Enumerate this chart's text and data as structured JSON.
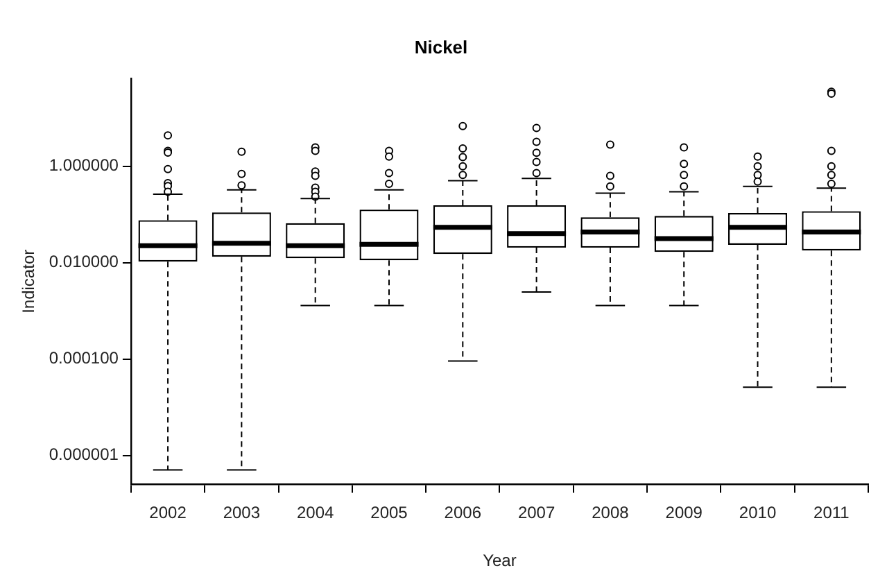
{
  "chart_data": {
    "type": "box",
    "title": "Nickel",
    "xlabel": "Year",
    "ylabel": "Indicator",
    "categories": [
      "2002",
      "2003",
      "2004",
      "2005",
      "2006",
      "2007",
      "2008",
      "2009",
      "2010",
      "2011"
    ],
    "log": true,
    "ylim": [
      2.5e-07,
      66
    ],
    "yticks": [
      {
        "value": 1e-06,
        "label": "0.000001"
      },
      {
        "value": 0.0001,
        "label": "0.000100"
      },
      {
        "value": 0.01,
        "label": "0.010000"
      },
      {
        "value": 1,
        "label": "1.000000"
      }
    ],
    "color": "#000000",
    "boxes": [
      {
        "low": 5e-07,
        "q1": 0.0105,
        "median": 0.0224,
        "q3": 0.0759,
        "high": 0.263,
        "outliers": [
          4.37,
          2.09,
          1.91,
          0.87,
          0.447,
          0.389,
          0.295
        ]
      },
      {
        "low": 5e-07,
        "q1": 0.0132,
        "median": 0.0251,
        "q3": 0.11,
        "high": 0.324,
        "outliers": [
          2.0,
          0.69,
          0.4
        ]
      },
      {
        "low": 0.00129,
        "q1": 0.0123,
        "median": 0.0224,
        "q3": 0.066,
        "high": 0.214,
        "outliers": [
          2.45,
          2.09,
          0.78,
          0.63,
          0.36,
          0.295,
          0.234
        ]
      },
      {
        "low": 0.00129,
        "q1": 0.0112,
        "median": 0.024,
        "q3": 0.126,
        "high": 0.324,
        "outliers": [
          2.09,
          1.58,
          0.72,
          0.43
        ]
      },
      {
        "low": 9.1e-05,
        "q1": 0.0151,
        "median": 0.054,
        "q3": 0.155,
        "high": 0.5,
        "outliers": [
          6.8,
          2.34,
          1.55,
          1.0,
          0.66
        ]
      },
      {
        "low": 0.00245,
        "q1": 0.0204,
        "median": 0.04,
        "q3": 0.155,
        "high": 0.56,
        "outliers": [
          6.2,
          3.2,
          1.9,
          1.23,
          0.72
        ]
      },
      {
        "low": 0.00129,
        "q1": 0.0204,
        "median": 0.043,
        "q3": 0.087,
        "high": 0.275,
        "outliers": [
          2.8,
          0.63,
          0.38
        ]
      },
      {
        "low": 0.00129,
        "q1": 0.0166,
        "median": 0.0316,
        "q3": 0.093,
        "high": 0.295,
        "outliers": [
          2.45,
          1.12,
          0.66,
          0.38
        ]
      },
      {
        "low": 2.6e-05,
        "q1": 0.0234,
        "median": 0.054,
        "q3": 0.107,
        "high": 0.38,
        "outliers": [
          1.58,
          1.0,
          0.66,
          0.48
        ]
      },
      {
        "low": 2.6e-05,
        "q1": 0.0178,
        "median": 0.043,
        "q3": 0.117,
        "high": 0.35,
        "outliers": [
          35,
          32,
          2.09,
          1.0,
          0.66,
          0.43
        ]
      }
    ]
  }
}
